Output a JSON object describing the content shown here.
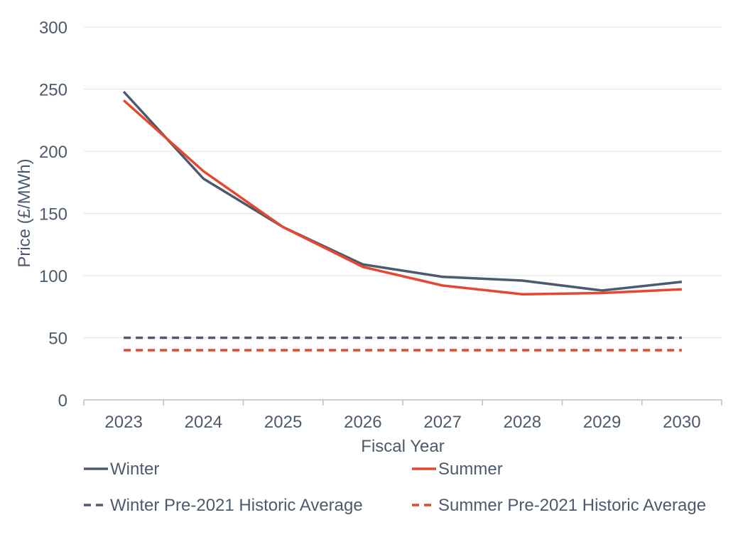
{
  "chart_data": {
    "type": "line",
    "title": "",
    "xlabel": "Fiscal Year",
    "ylabel": "Price (£/MWh)",
    "ylim": [
      0,
      300
    ],
    "yticks": [
      0,
      50,
      100,
      150,
      200,
      250,
      300
    ],
    "grid": true,
    "legend_placement": "bottom",
    "categories": [
      "2023",
      "2024",
      "2025",
      "2026",
      "2027",
      "2028",
      "2029",
      "2030"
    ],
    "series": [
      {
        "name": "Winter",
        "color": "#4b5b6d",
        "dash": false,
        "values": [
          248,
          178,
          139,
          109,
          99,
          96,
          88,
          95
        ]
      },
      {
        "name": "Summer",
        "color": "#e8472f",
        "dash": false,
        "values": [
          241,
          184,
          139,
          107,
          92,
          85,
          86,
          89
        ]
      },
      {
        "name": "Winter Pre-2021 Historic Average",
        "color": "#4b5b6d",
        "dash": true,
        "values": [
          50,
          50,
          50,
          50,
          50,
          50,
          50,
          50
        ]
      },
      {
        "name": "Summer Pre-2021 Historic Average",
        "color": "#e8472f",
        "dash": true,
        "values": [
          40,
          40,
          40,
          40,
          40,
          40,
          40,
          40
        ]
      }
    ]
  }
}
